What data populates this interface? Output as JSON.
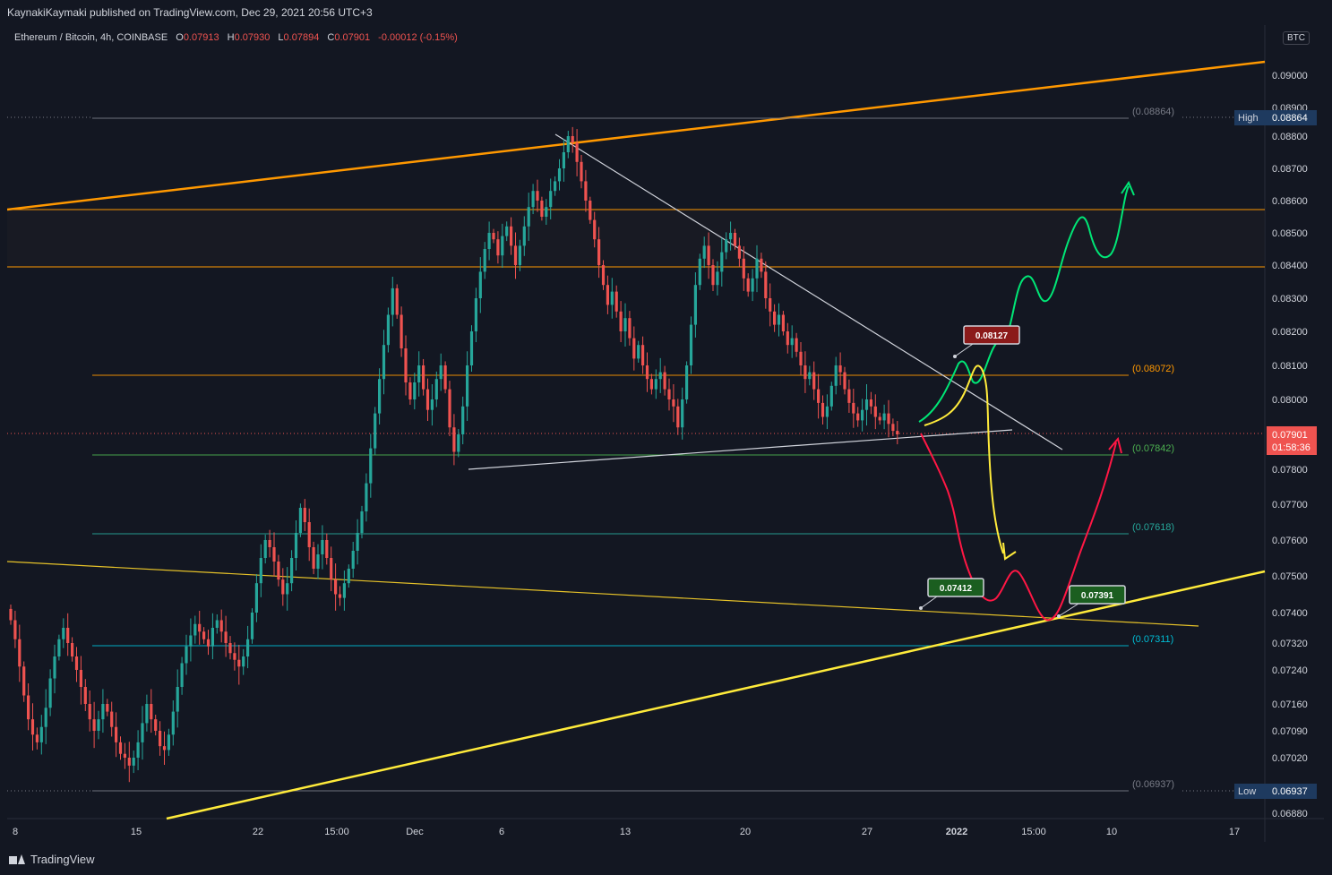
{
  "header": {
    "published_line": "KaynakiKaymaki published on TradingView.com, Dec 29, 2021 20:56 UTC+3"
  },
  "legend": {
    "symbol": "Ethereum / Bitcoin, 4h, COINBASE",
    "open_label": "O",
    "open": "0.07913",
    "high_label": "H",
    "high": "0.07930",
    "low_label": "L",
    "low": "0.07894",
    "close_label": "C",
    "close": "0.07901",
    "change": "-0.00012 (-0.15%)"
  },
  "currency_button": "BTC",
  "footer": {
    "brand": "TradingView"
  },
  "colors": {
    "background": "#131722",
    "up": "#26a69a",
    "down": "#ef5350",
    "orange": "#ff9800",
    "yellow": "#ffeb3b",
    "green_path": "#00e676",
    "red_path": "#ff1744",
    "white_line": "#d1d4dc"
  },
  "chart_data": {
    "type": "line",
    "symbol": "ETH/BTC",
    "interval": "4h",
    "y_axis_ticks": [
      "0.09000",
      "0.08900",
      "0.08800",
      "0.08700",
      "0.08600",
      "0.08500",
      "0.08400",
      "0.08300",
      "0.08200",
      "0.08100",
      "0.08000",
      "0.07800",
      "0.07700",
      "0.07600",
      "0.07500",
      "0.07400",
      "0.07320",
      "0.07240",
      "0.07160",
      "0.07090",
      "0.07020",
      "0.06880"
    ],
    "x_axis_ticks": [
      "8",
      "15",
      "22",
      "15:00",
      "Dec",
      "6",
      "13",
      "20",
      "27",
      "2022",
      "15:00",
      "10",
      "17"
    ],
    "last_price": "0.07901",
    "countdown": "01:58:36",
    "high_label": "High",
    "high_value": "0.08864",
    "low_label": "Low",
    "low_value": "0.06937",
    "levels": [
      {
        "label": "(0.08864)",
        "value": 0.08864,
        "color": "#787b86"
      },
      {
        "label": "(0.08072)",
        "value": 0.08072,
        "color": "#ff9800"
      },
      {
        "label": "(0.07842)",
        "value": 0.07842,
        "color": "#4caf50"
      },
      {
        "label": "(0.07618)",
        "value": 0.07618,
        "color": "#26a69a"
      },
      {
        "label": "(0.07311)",
        "value": 0.07311,
        "color": "#00bcd4"
      },
      {
        "label": "(0.06937)",
        "value": 0.06937,
        "color": "#787b86"
      }
    ],
    "callouts": [
      {
        "text": "0.08127",
        "value": 0.08127,
        "box": "#8b1a1a"
      },
      {
        "text": "0.07412",
        "value": 0.07412,
        "box": "#1b5e20"
      },
      {
        "text": "0.07391",
        "value": 0.07391,
        "box": "#1b5e20"
      }
    ],
    "approx_closes": [
      0.0738,
      0.0733,
      0.0725,
      0.0718,
      0.0712,
      0.0708,
      0.0706,
      0.071,
      0.0715,
      0.0722,
      0.0728,
      0.0733,
      0.0736,
      0.0732,
      0.0728,
      0.0724,
      0.072,
      0.0716,
      0.0712,
      0.0709,
      0.0712,
      0.0716,
      0.0714,
      0.071,
      0.0706,
      0.0703,
      0.0702,
      0.07,
      0.0702,
      0.0706,
      0.0711,
      0.0716,
      0.0712,
      0.0709,
      0.0705,
      0.0704,
      0.0708,
      0.0714,
      0.072,
      0.0726,
      0.0731,
      0.0734,
      0.0737,
      0.0735,
      0.0733,
      0.0731,
      0.0736,
      0.0738,
      0.0735,
      0.0732,
      0.0729,
      0.0727,
      0.0725,
      0.0728,
      0.0733,
      0.074,
      0.0748,
      0.0755,
      0.076,
      0.0758,
      0.0754,
      0.0749,
      0.0745,
      0.0748,
      0.0755,
      0.0762,
      0.0769,
      0.0765,
      0.0758,
      0.0752,
      0.0756,
      0.076,
      0.0755,
      0.0749,
      0.0745,
      0.0744,
      0.0748,
      0.0752,
      0.0757,
      0.0762,
      0.0768,
      0.0776,
      0.0786,
      0.0796,
      0.0806,
      0.0816,
      0.0825,
      0.0833,
      0.0825,
      0.0815,
      0.0805,
      0.08,
      0.0805,
      0.081,
      0.0803,
      0.0797,
      0.08,
      0.0806,
      0.081,
      0.0803,
      0.0792,
      0.0785,
      0.079,
      0.0798,
      0.081,
      0.082,
      0.083,
      0.0838,
      0.0845,
      0.085,
      0.0848,
      0.0843,
      0.0849,
      0.0852,
      0.0846,
      0.084,
      0.0846,
      0.0852,
      0.0858,
      0.0863,
      0.086,
      0.0855,
      0.0858,
      0.0863,
      0.0866,
      0.087,
      0.0875,
      0.088,
      0.0878,
      0.0872,
      0.0866,
      0.086,
      0.0854,
      0.0848,
      0.084,
      0.0834,
      0.0828,
      0.0832,
      0.0826,
      0.082,
      0.0824,
      0.0818,
      0.0812,
      0.0816,
      0.081,
      0.0806,
      0.0803,
      0.0806,
      0.0808,
      0.0803,
      0.08,
      0.0798,
      0.0792,
      0.08,
      0.081,
      0.0822,
      0.0834,
      0.0842,
      0.0846,
      0.084,
      0.0834,
      0.0838,
      0.0844,
      0.0848,
      0.085,
      0.0846,
      0.0842,
      0.0836,
      0.0832,
      0.0836,
      0.0842,
      0.0838,
      0.083,
      0.0826,
      0.0822,
      0.0825,
      0.082,
      0.0816,
      0.0818,
      0.0814,
      0.081,
      0.0806,
      0.0808,
      0.0803,
      0.0799,
      0.0795,
      0.0798,
      0.0804,
      0.081,
      0.0808,
      0.0803,
      0.0799,
      0.0796,
      0.0794,
      0.0797,
      0.08,
      0.0798,
      0.0795,
      0.0794,
      0.0796,
      0.0793,
      0.0791,
      0.079
    ]
  }
}
